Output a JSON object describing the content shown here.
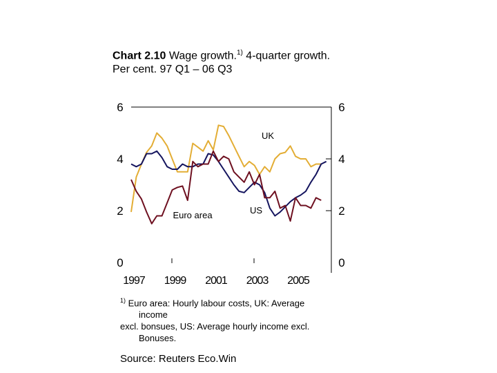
{
  "title": {
    "bold": "Chart 2.10",
    "text": " Wage growth.",
    "sup": "1)",
    "text2": " 4-quarter growth.",
    "line3": "Per cent. 97 Q1 – 06 Q3"
  },
  "footnote": {
    "sup": "1)",
    "line1": " Euro area: Hourly labour costs, UK: Average",
    "line2": "income",
    "line3": "excl. bonsues, US: Average hourly income excl.",
    "line4": "Bonuses."
  },
  "source": "Source: Reuters Eco.Win",
  "chart_data": {
    "type": "line",
    "title": "Wage growth. 4-quarter growth.",
    "ylabel": "Per cent",
    "ylim": [
      0,
      6
    ],
    "yticks_left": [
      "0",
      "2",
      "4",
      "6"
    ],
    "yticks_right": [
      "0",
      "2",
      "4",
      "6"
    ],
    "xtick_labels": [
      "1997",
      "1999",
      "2001",
      "2003",
      "2005"
    ],
    "x_start": "1997 Q1",
    "grid": false,
    "series": [
      {
        "name": "UK",
        "color": "#e3ad34",
        "values": [
          1.95,
          3.3,
          3.8,
          4.25,
          4.5,
          5.0,
          4.8,
          4.5,
          4.0,
          3.5,
          3.5,
          3.5,
          4.6,
          4.45,
          4.3,
          4.7,
          4.35,
          5.3,
          5.25,
          4.9,
          4.5,
          4.1,
          3.7,
          3.9,
          3.75,
          3.4,
          3.7,
          3.5,
          4.0,
          4.2,
          4.25,
          4.5,
          4.1,
          4.0,
          4.0,
          3.7,
          3.8,
          3.8
        ]
      },
      {
        "name": "US",
        "color": "#14145e",
        "values": [
          3.8,
          3.7,
          3.8,
          4.2,
          4.2,
          4.3,
          4.05,
          3.7,
          3.6,
          3.6,
          3.8,
          3.7,
          3.7,
          3.8,
          3.8,
          4.2,
          4.15,
          3.9,
          3.6,
          3.3,
          3.0,
          2.75,
          2.7,
          2.9,
          3.1,
          3.0,
          2.7,
          2.1,
          1.8,
          1.95,
          2.15,
          2.35,
          2.5,
          2.6,
          2.75,
          3.1,
          3.4,
          3.8,
          3.9
        ]
      },
      {
        "name": "Euro area",
        "color": "#6e1020",
        "values": [
          3.2,
          2.75,
          2.45,
          1.95,
          1.5,
          1.8,
          1.8,
          2.3,
          2.8,
          2.9,
          2.95,
          2.4,
          3.9,
          3.7,
          3.8,
          3.8,
          4.3,
          3.9,
          4.1,
          4.0,
          3.5,
          3.3,
          3.1,
          3.5,
          3.0,
          3.4,
          2.5,
          2.5,
          2.75,
          2.1,
          2.2,
          1.6,
          2.5,
          2.2,
          2.2,
          2.1,
          2.5,
          2.4
        ]
      }
    ],
    "annotations": [
      "UK",
      "Euro area",
      "US"
    ]
  }
}
